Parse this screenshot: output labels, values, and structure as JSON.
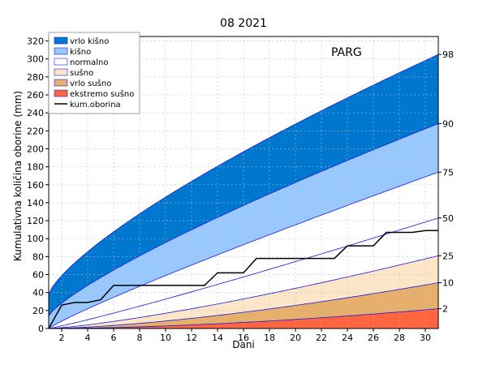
{
  "chart_data": {
    "type": "area",
    "title": "08 2021",
    "xlabel": "Dani",
    "ylabel": "Kumulativna količina oborine (mm)",
    "station": "PARG",
    "xlim": [
      1,
      31
    ],
    "ylim": [
      0,
      325
    ],
    "x_ticks": [
      2,
      4,
      6,
      8,
      10,
      12,
      14,
      16,
      18,
      20,
      22,
      24,
      26,
      28,
      30
    ],
    "y_ticks": [
      0,
      20,
      40,
      60,
      80,
      100,
      120,
      140,
      160,
      180,
      200,
      220,
      240,
      260,
      280,
      300,
      320
    ],
    "grid": true,
    "legend_position": "top-left",
    "days": [
      1,
      2,
      3,
      4,
      5,
      6,
      7,
      8,
      9,
      10,
      11,
      12,
      13,
      14,
      15,
      16,
      17,
      18,
      19,
      20,
      21,
      22,
      23,
      24,
      25,
      26,
      27,
      28,
      29,
      30,
      31
    ],
    "percentiles": [
      {
        "name": "98",
        "day1": 38,
        "day31": 305,
        "exp": 0.75
      },
      {
        "name": "90",
        "day1": 14,
        "day31": 228,
        "exp": 0.8
      },
      {
        "name": "75",
        "day1": 0,
        "day31": 174,
        "exp": 0.9
      },
      {
        "name": "50",
        "day1": 0,
        "day31": 123,
        "exp": 1.1
      },
      {
        "name": "25",
        "day1": 0,
        "day31": 81,
        "exp": 1.3
      },
      {
        "name": "10",
        "day1": 0,
        "day31": 51,
        "exp": 1.5
      },
      {
        "name": "2",
        "day1": 0,
        "day31": 22,
        "exp": 1.7
      }
    ],
    "bands": [
      {
        "name": "vrlo kišno",
        "lower": "90",
        "upper": "98",
        "color": "#0078d0"
      },
      {
        "name": "kišno",
        "lower": "75",
        "upper": "90",
        "color": "#99c8ff"
      },
      {
        "name": "normalno",
        "lower": "25",
        "upper": "75",
        "color": "#ffffff"
      },
      {
        "name": "sušno",
        "lower": "10",
        "upper": "25",
        "color": "#fde5c8"
      },
      {
        "name": "vrlo sušno",
        "lower": "2",
        "upper": "10",
        "color": "#e6b06c"
      },
      {
        "name": "ekstremo sušno",
        "lower": "floor",
        "upper": "2",
        "color": "#ff6640"
      }
    ],
    "cumulative": {
      "name": "kum.oborina",
      "color": "#000000",
      "x": [
        1,
        2,
        3,
        4,
        5,
        6,
        7,
        8,
        9,
        10,
        11,
        12,
        13,
        14,
        15,
        16,
        17,
        18,
        19,
        20,
        21,
        22,
        23,
        24,
        25,
        26,
        27,
        28,
        29,
        30,
        31
      ],
      "y": [
        0,
        26,
        29,
        29,
        32,
        48,
        48,
        48,
        48,
        48,
        48,
        48,
        48,
        62,
        62,
        62,
        78,
        78,
        78,
        78,
        78,
        78,
        78,
        92,
        92,
        92,
        107,
        107,
        107,
        109,
        109
      ]
    },
    "line_color": "#1a1adc"
  }
}
